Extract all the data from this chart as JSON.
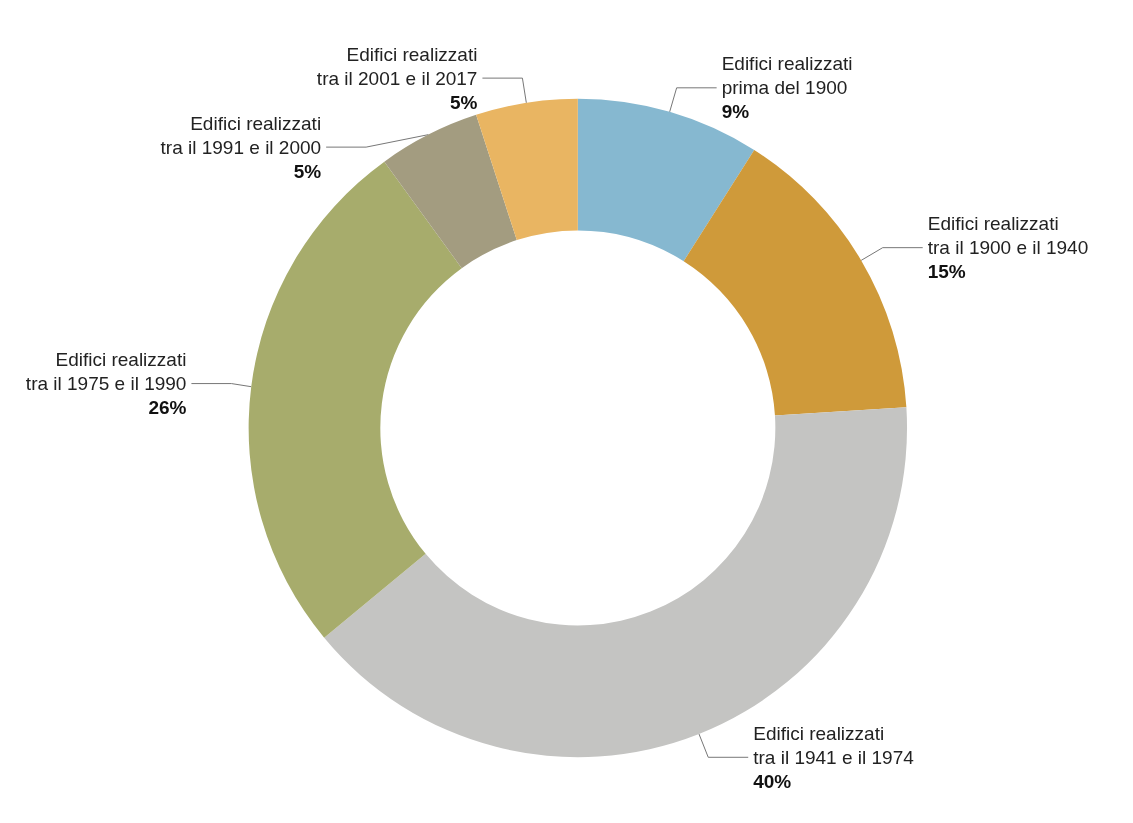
{
  "chart_data": {
    "type": "donut",
    "categories": [
      "Edifici realizzati\nprima del 1900",
      "Edifici realizzati\ntra il 1900 e il 1940",
      "Edifici realizzati\ntra il 1941 e il 1974",
      "Edifici realizzati\ntra il 1975 e il 1990",
      "Edifici realizzati\ntra il 1991 e il 2000",
      "Edifici realizzati\ntra il 2001 e il 2017"
    ],
    "values": [
      9,
      15,
      40,
      26,
      5,
      5
    ],
    "value_labels": [
      "9%",
      "15%",
      "40%",
      "26%",
      "5%",
      "5%"
    ],
    "colors": [
      "#86b8d0",
      "#cf9a3a",
      "#c4c4c2",
      "#a7ac6c",
      "#a39c80",
      "#e9b562"
    ],
    "legend": false
  }
}
